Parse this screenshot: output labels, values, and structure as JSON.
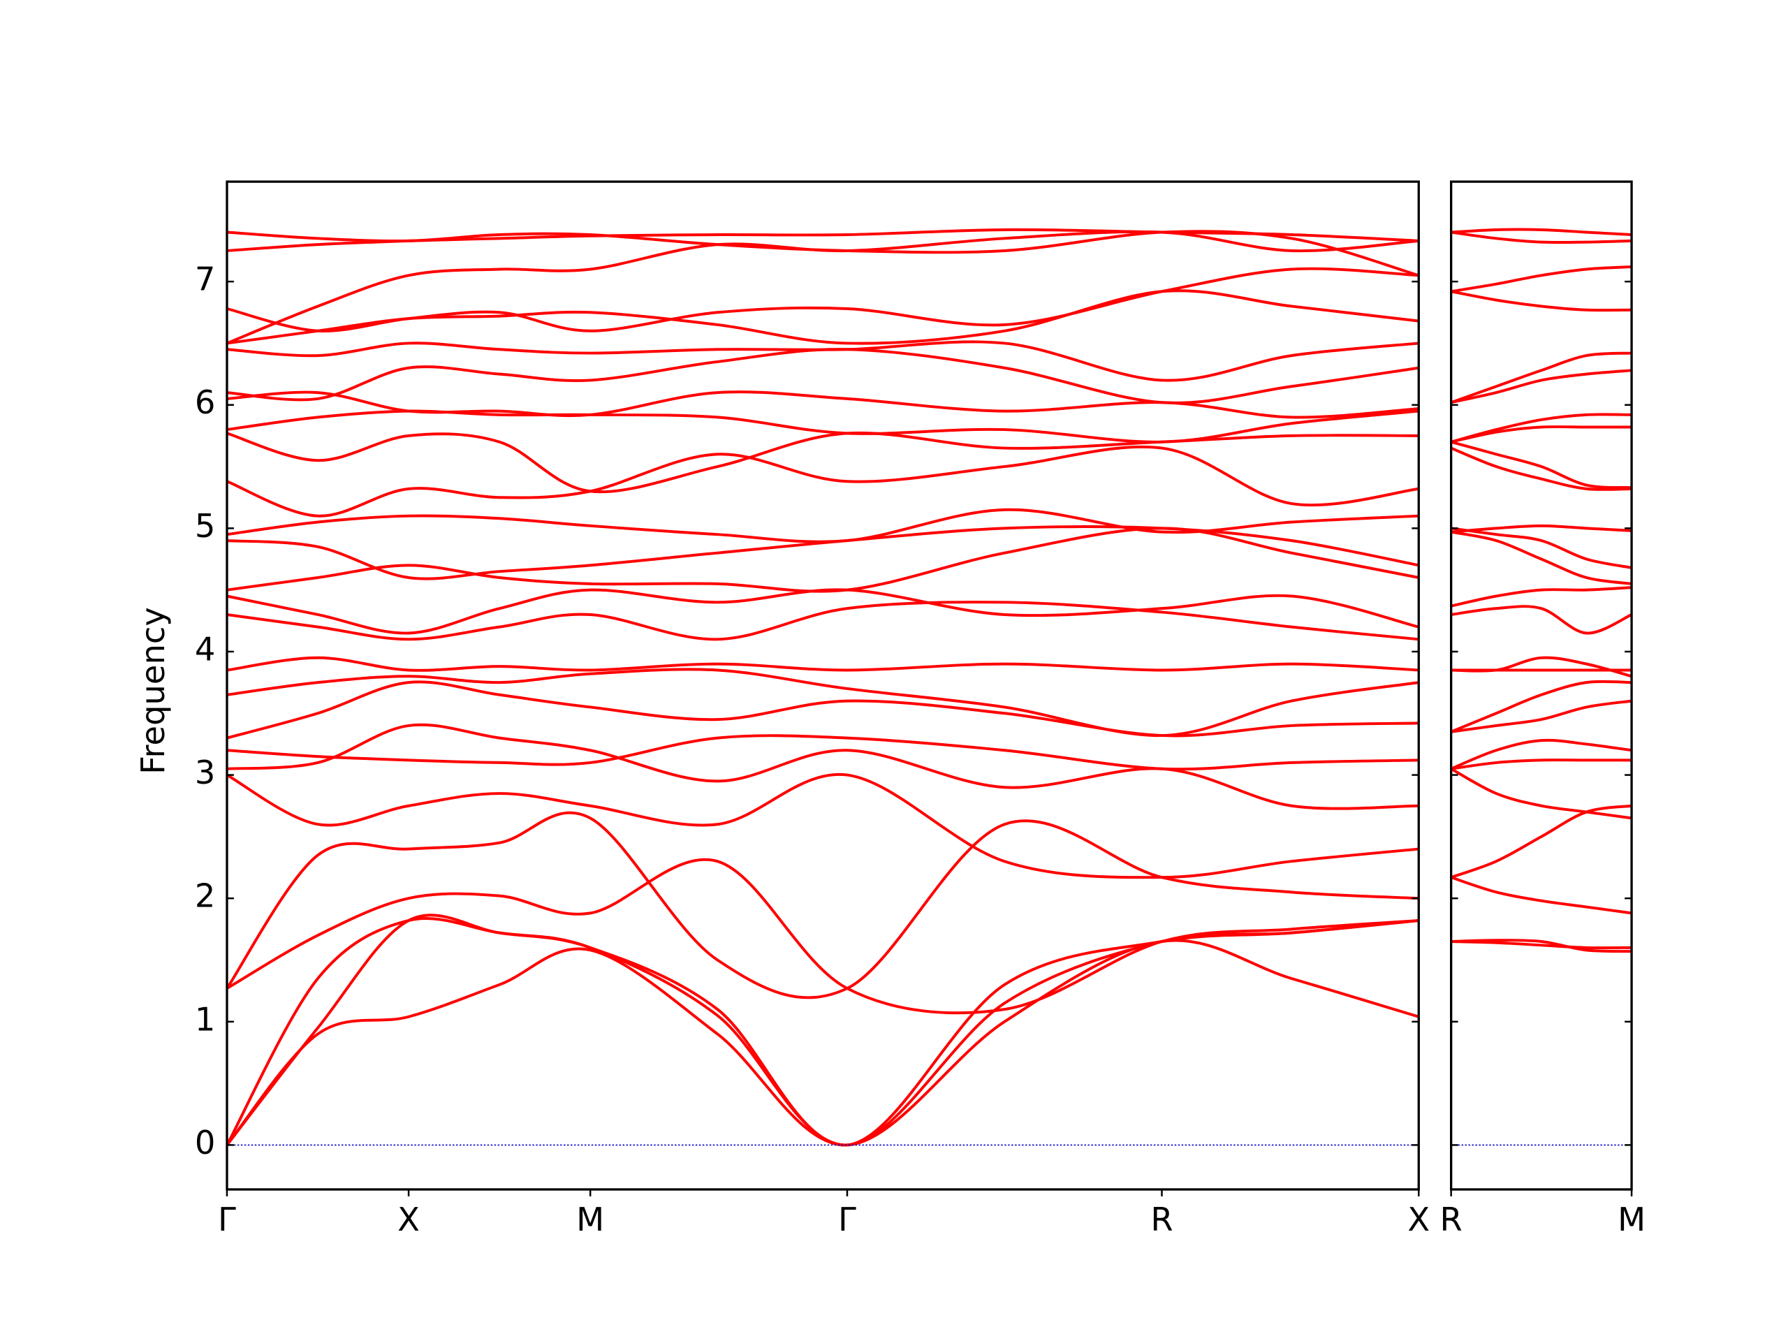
{
  "chart_data": [
    {
      "type": "line",
      "ylabel": "Frequency",
      "color": "#ff0000",
      "zero_line_color": "#0000cc",
      "xlim": [
        0,
        3.28
      ],
      "ylim": [
        -0.36,
        7.81
      ],
      "xticks": [
        {
          "value": 0,
          "label": "Γ"
        },
        {
          "value": 0.5,
          "label": "X"
        },
        {
          "value": 1.0,
          "label": "M"
        },
        {
          "value": 1.707,
          "label": "Γ"
        },
        {
          "value": 2.573,
          "label": "R"
        },
        {
          "value": 3.28,
          "label": "X"
        }
      ],
      "yticks": [
        0,
        1,
        2,
        3,
        4,
        5,
        6,
        7
      ],
      "x": [
        0,
        0.25,
        0.5,
        0.75,
        1.0,
        1.35,
        1.707,
        2.14,
        2.573,
        2.93,
        3.28
      ],
      "series": [
        {
          "values": [
            0,
            0.9,
            1.04,
            1.3,
            1.58,
            0.9,
            0,
            1.0,
            1.65,
            1.35,
            1.04
          ]
        },
        {
          "values": [
            0,
            0.95,
            1.82,
            1.72,
            1.6,
            1.05,
            0,
            1.15,
            1.65,
            1.72,
            1.82
          ]
        },
        {
          "values": [
            0,
            1.35,
            1.82,
            1.72,
            1.6,
            1.1,
            0,
            1.3,
            1.65,
            1.72,
            1.82
          ]
        },
        {
          "values": [
            1.27,
            1.7,
            2.0,
            2.02,
            1.88,
            2.3,
            1.27,
            1.1,
            1.65,
            1.75,
            1.82
          ]
        },
        {
          "values": [
            1.27,
            2.35,
            2.4,
            2.45,
            2.65,
            1.5,
            1.27,
            2.6,
            2.17,
            2.05,
            2.0
          ]
        },
        {
          "values": [
            3.0,
            2.6,
            2.75,
            2.85,
            2.75,
            2.6,
            3.0,
            2.3,
            2.17,
            2.3,
            2.4
          ]
        },
        {
          "values": [
            3.05,
            3.1,
            3.4,
            3.3,
            3.2,
            2.95,
            3.2,
            2.9,
            3.05,
            2.75,
            2.75
          ]
        },
        {
          "values": [
            3.2,
            3.15,
            3.12,
            3.1,
            3.1,
            3.3,
            3.3,
            3.2,
            3.05,
            3.1,
            3.12
          ]
        },
        {
          "values": [
            3.3,
            3.5,
            3.75,
            3.65,
            3.55,
            3.45,
            3.6,
            3.5,
            3.32,
            3.4,
            3.42
          ]
        },
        {
          "values": [
            3.65,
            3.75,
            3.8,
            3.75,
            3.82,
            3.85,
            3.7,
            3.55,
            3.32,
            3.6,
            3.75
          ]
        },
        {
          "values": [
            3.85,
            3.95,
            3.85,
            3.88,
            3.85,
            3.9,
            3.85,
            3.9,
            3.85,
            3.9,
            3.85
          ]
        },
        {
          "values": [
            4.3,
            4.2,
            4.1,
            4.2,
            4.3,
            4.1,
            4.35,
            4.4,
            4.32,
            4.2,
            4.1
          ]
        },
        {
          "values": [
            4.45,
            4.3,
            4.15,
            4.35,
            4.5,
            4.4,
            4.5,
            4.3,
            4.35,
            4.45,
            4.2
          ]
        },
        {
          "values": [
            4.5,
            4.6,
            4.7,
            4.6,
            4.55,
            4.55,
            4.5,
            4.8,
            5.0,
            4.8,
            4.6
          ]
        },
        {
          "values": [
            4.9,
            4.85,
            4.6,
            4.65,
            4.7,
            4.8,
            4.9,
            5.0,
            5.0,
            4.9,
            4.7
          ]
        },
        {
          "values": [
            4.95,
            5.05,
            5.1,
            5.08,
            5.02,
            4.95,
            4.9,
            5.15,
            4.97,
            5.05,
            5.1
          ]
        },
        {
          "values": [
            5.38,
            5.1,
            5.32,
            5.25,
            5.3,
            5.6,
            5.38,
            5.5,
            5.65,
            5.2,
            5.32
          ]
        },
        {
          "values": [
            5.77,
            5.55,
            5.75,
            5.7,
            5.3,
            5.5,
            5.77,
            5.65,
            5.7,
            5.75,
            5.75
          ]
        },
        {
          "values": [
            5.8,
            5.9,
            5.95,
            5.92,
            5.92,
            5.9,
            5.77,
            5.8,
            5.7,
            5.85,
            5.95
          ]
        },
        {
          "values": [
            6.05,
            6.1,
            5.95,
            5.95,
            5.92,
            6.1,
            6.05,
            5.95,
            6.02,
            5.9,
            5.97
          ]
        },
        {
          "values": [
            6.1,
            6.05,
            6.3,
            6.25,
            6.2,
            6.35,
            6.45,
            6.3,
            6.02,
            6.15,
            6.3
          ]
        },
        {
          "values": [
            6.45,
            6.4,
            6.5,
            6.45,
            6.42,
            6.45,
            6.45,
            6.5,
            6.2,
            6.4,
            6.5
          ]
        },
        {
          "values": [
            6.5,
            6.6,
            6.7,
            6.72,
            6.75,
            6.65,
            6.5,
            6.6,
            6.92,
            6.8,
            6.68
          ]
        },
        {
          "values": [
            6.78,
            6.6,
            6.7,
            6.75,
            6.6,
            6.75,
            6.78,
            6.65,
            6.92,
            7.1,
            7.05
          ]
        },
        {
          "values": [
            6.5,
            6.8,
            7.05,
            7.1,
            7.1,
            7.3,
            7.25,
            7.35,
            7.4,
            7.25,
            7.33
          ]
        },
        {
          "values": [
            7.25,
            7.3,
            7.33,
            7.35,
            7.37,
            7.38,
            7.38,
            7.42,
            7.4,
            7.38,
            7.33
          ]
        },
        {
          "values": [
            7.4,
            7.35,
            7.33,
            7.38,
            7.38,
            7.3,
            7.25,
            7.25,
            7.4,
            7.35,
            7.05
          ]
        }
      ]
    },
    {
      "type": "line",
      "color": "#ff0000",
      "zero_line_color": "#0000cc",
      "xlim": [
        0,
        0.5
      ],
      "ylim": [
        -0.36,
        7.81
      ],
      "xticks": [
        {
          "value": 0,
          "label": "R"
        },
        {
          "value": 0.5,
          "label": "M"
        }
      ],
      "yticks": [
        0,
        1,
        2,
        3,
        4,
        5,
        6,
        7
      ],
      "x": [
        0,
        0.125,
        0.25,
        0.375,
        0.5
      ],
      "series": [
        {
          "values": [
            1.65,
            1.66,
            1.65,
            1.58,
            1.57
          ]
        },
        {
          "values": [
            1.65,
            1.64,
            1.62,
            1.6,
            1.6
          ]
        },
        {
          "values": [
            2.17,
            2.05,
            1.98,
            1.93,
            1.88
          ]
        },
        {
          "values": [
            2.17,
            2.3,
            2.5,
            2.7,
            2.75
          ]
        },
        {
          "values": [
            3.05,
            2.85,
            2.75,
            2.7,
            2.65
          ]
        },
        {
          "values": [
            3.05,
            3.1,
            3.12,
            3.12,
            3.12
          ]
        },
        {
          "values": [
            3.05,
            3.2,
            3.28,
            3.25,
            3.2
          ]
        },
        {
          "values": [
            3.35,
            3.4,
            3.45,
            3.55,
            3.6
          ]
        },
        {
          "values": [
            3.35,
            3.5,
            3.65,
            3.75,
            3.75
          ]
        },
        {
          "values": [
            3.85,
            3.85,
            3.85,
            3.85,
            3.85
          ]
        },
        {
          "values": [
            3.85,
            3.85,
            3.95,
            3.9,
            3.8
          ]
        },
        {
          "values": [
            4.3,
            4.35,
            4.35,
            4.15,
            4.3
          ]
        },
        {
          "values": [
            4.37,
            4.45,
            4.5,
            4.5,
            4.52
          ]
        },
        {
          "values": [
            4.97,
            4.9,
            4.75,
            4.6,
            4.55
          ]
        },
        {
          "values": [
            4.97,
            5.0,
            5.02,
            5.0,
            4.98
          ]
        },
        {
          "values": [
            5.0,
            4.95,
            4.9,
            4.75,
            4.68
          ]
        },
        {
          "values": [
            5.65,
            5.5,
            5.4,
            5.32,
            5.32
          ]
        },
        {
          "values": [
            5.7,
            5.6,
            5.5,
            5.35,
            5.33
          ]
        },
        {
          "values": [
            5.7,
            5.78,
            5.82,
            5.82,
            5.82
          ]
        },
        {
          "values": [
            5.7,
            5.8,
            5.88,
            5.92,
            5.92
          ]
        },
        {
          "values": [
            6.02,
            6.15,
            6.28,
            6.4,
            6.42
          ]
        },
        {
          "values": [
            6.02,
            6.1,
            6.2,
            6.25,
            6.28
          ]
        },
        {
          "values": [
            6.92,
            6.98,
            7.05,
            7.1,
            7.12
          ]
        },
        {
          "values": [
            6.92,
            6.85,
            6.8,
            6.77,
            6.77
          ]
        },
        {
          "values": [
            7.4,
            7.35,
            7.32,
            7.32,
            7.33
          ]
        },
        {
          "values": [
            7.4,
            7.42,
            7.42,
            7.4,
            7.38
          ]
        }
      ]
    }
  ]
}
